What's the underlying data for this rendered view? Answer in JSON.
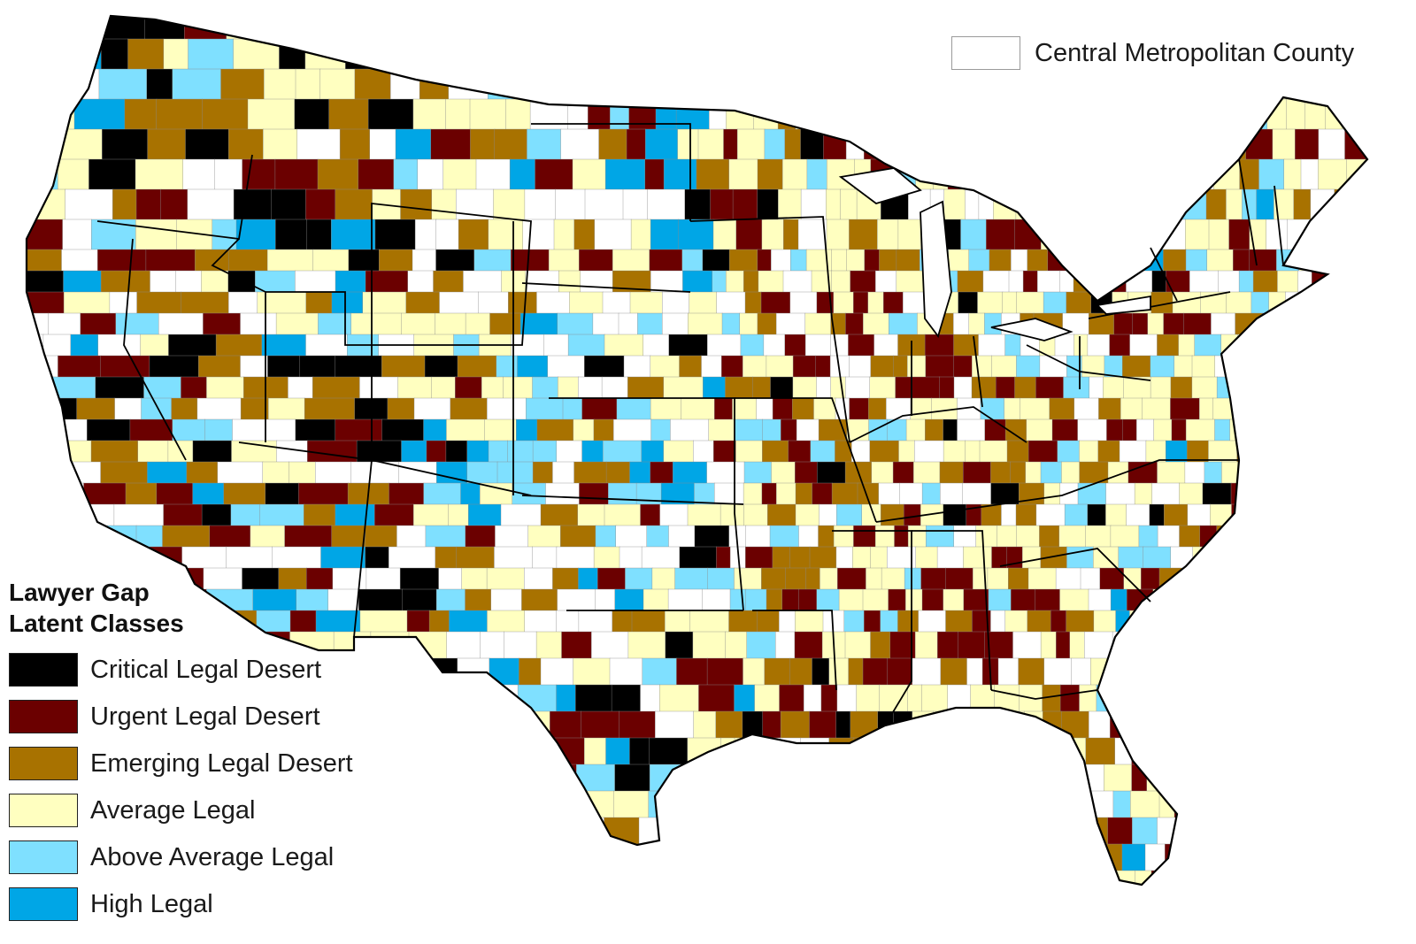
{
  "legend_top": {
    "label": "Central Metropolitan County",
    "color": "#ffffff"
  },
  "legend": {
    "title_line1": "Lawyer Gap",
    "title_line2": "Latent Classes",
    "items": [
      {
        "label": "Critical Legal Desert",
        "color": "#000000"
      },
      {
        "label": "Urgent Legal Desert",
        "color": "#6b0000"
      },
      {
        "label": "Emerging Legal Desert",
        "color": "#a87200"
      },
      {
        "label": "Average Legal",
        "color": "#ffffc0"
      },
      {
        "label": "Above Average Legal",
        "color": "#7fe0ff"
      },
      {
        "label": "High Legal",
        "color": "#00a6e6"
      }
    ]
  }
}
